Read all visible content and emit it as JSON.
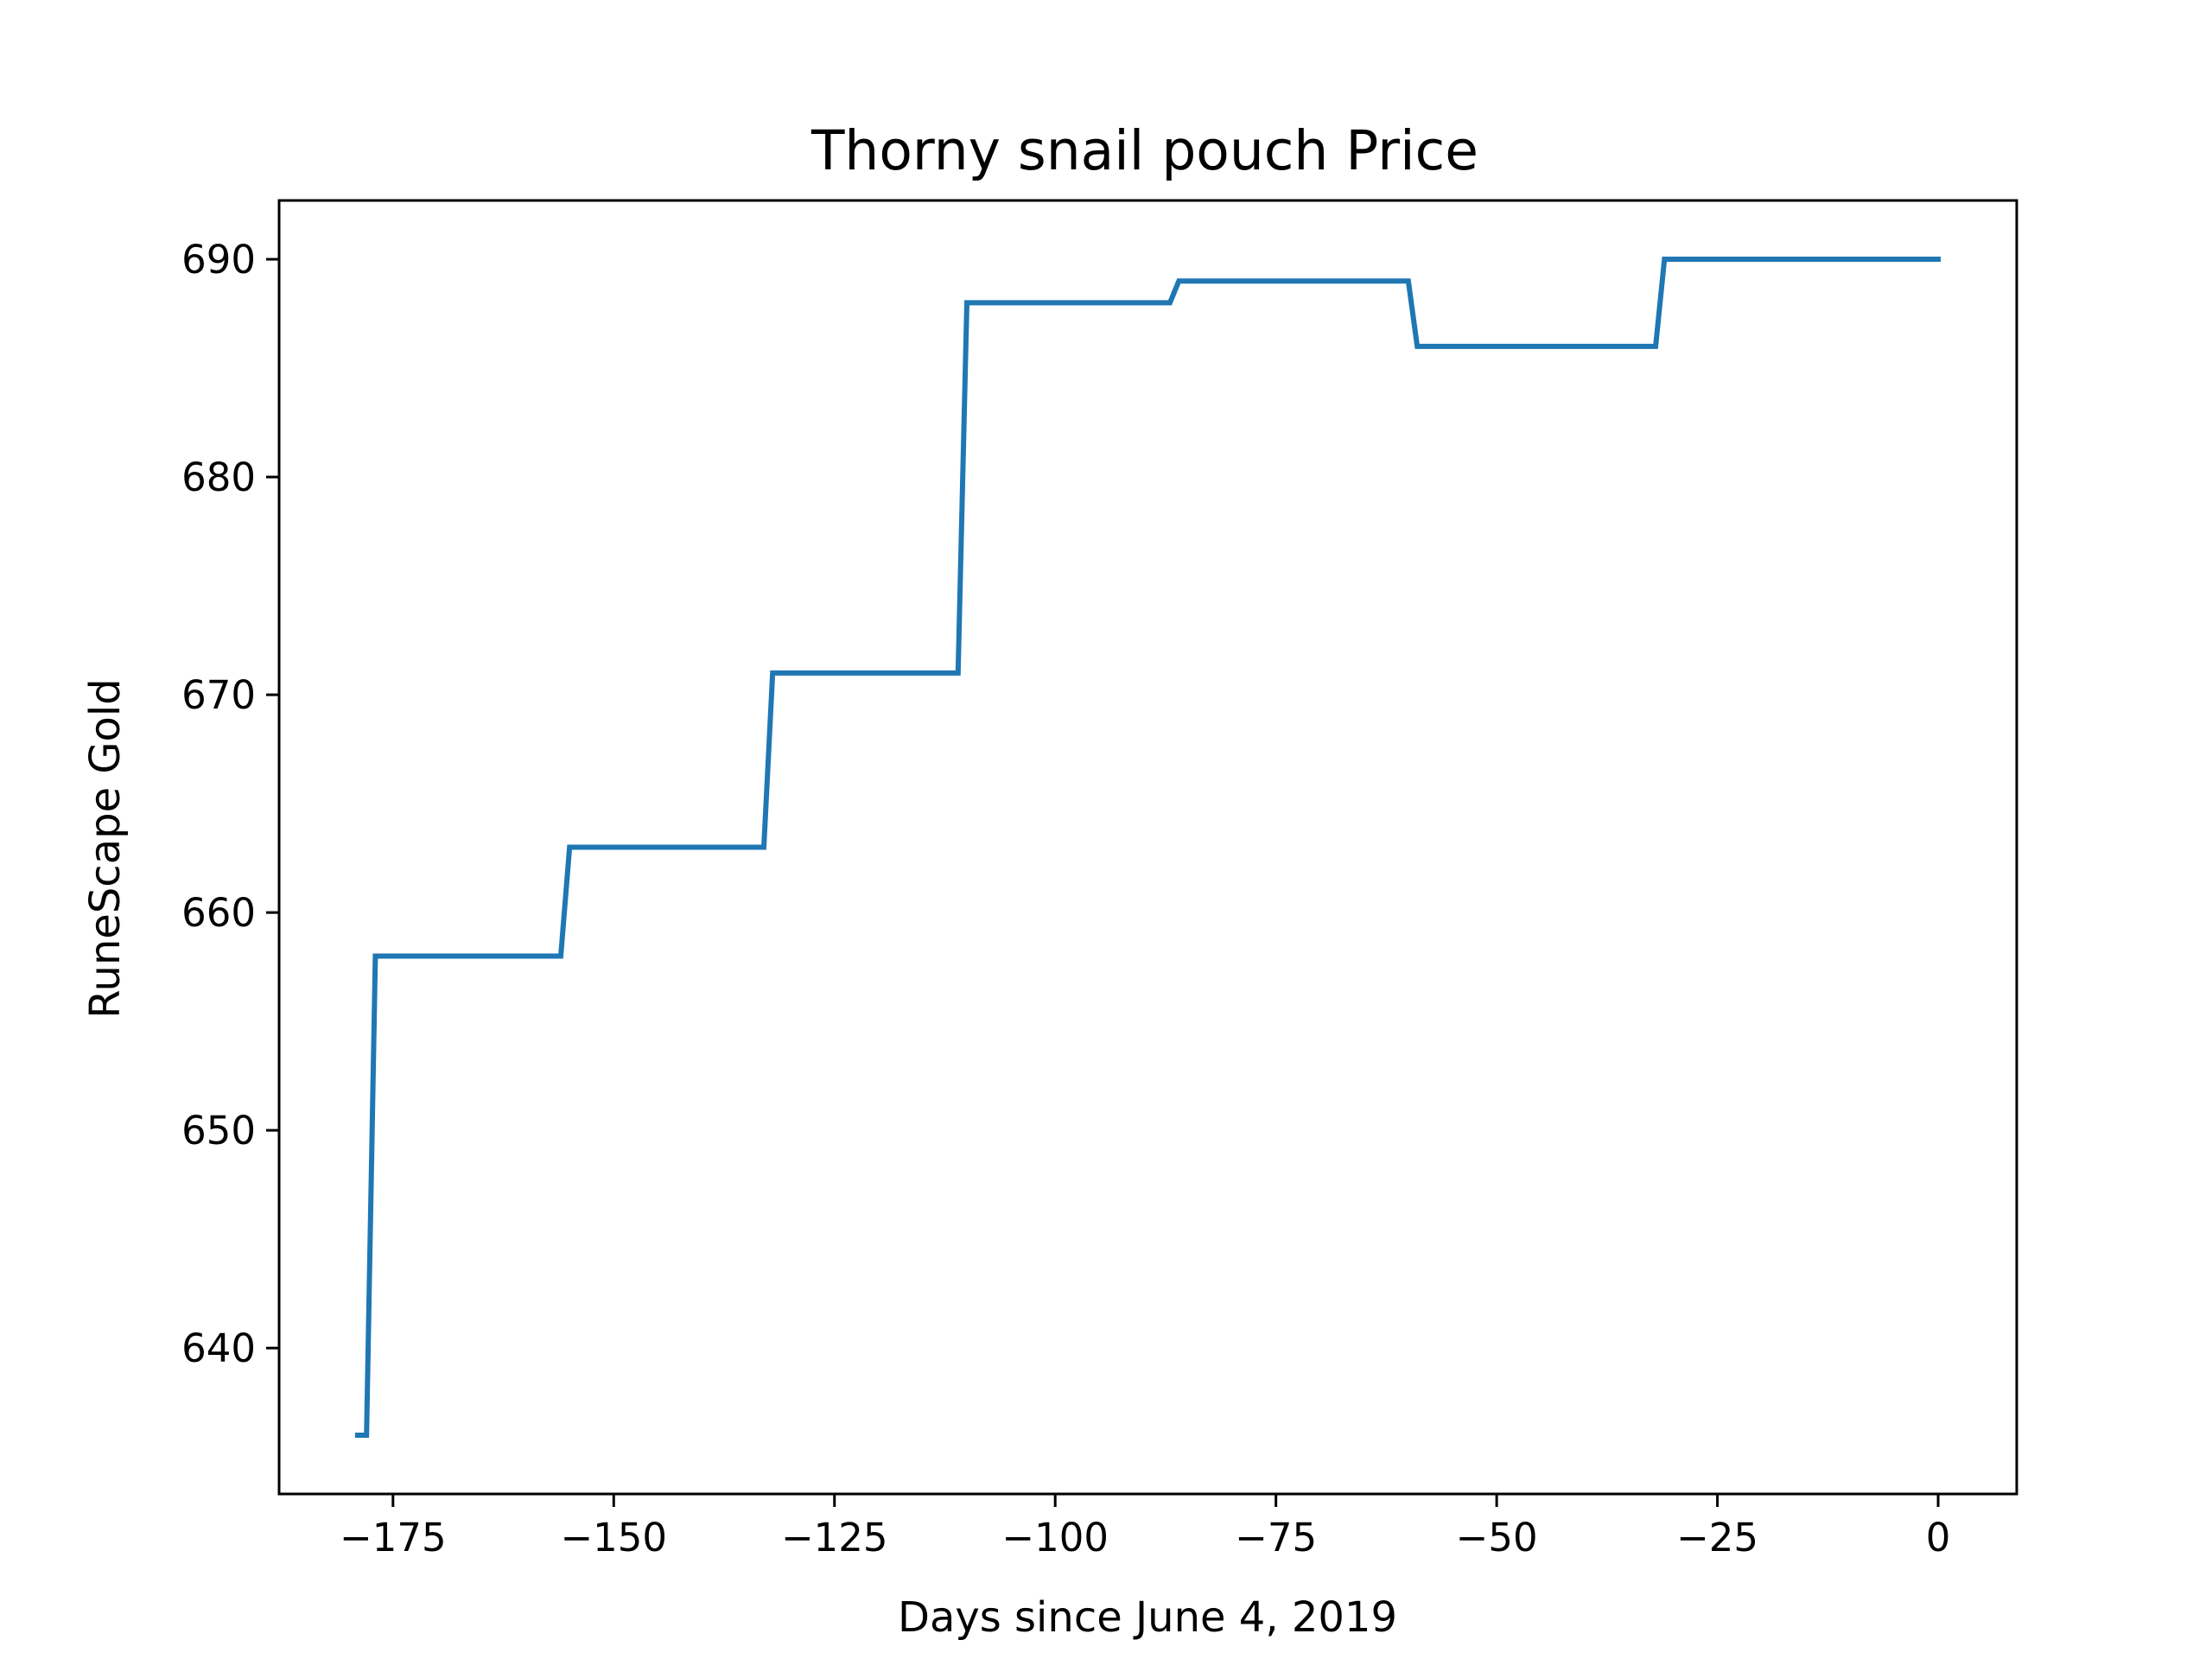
{
  "chart_data": {
    "type": "line",
    "title": "Thorny snail pouch Price",
    "xlabel": "Days since June 4, 2019",
    "ylabel": "RuneScape Gold",
    "xlim": [
      -187.9,
      8.9
    ],
    "ylim": [
      633.3,
      692.7
    ],
    "xticks": [
      -175,
      -150,
      -125,
      -100,
      -75,
      -50,
      -25,
      0
    ],
    "xtick_labels": [
      "−175",
      "−150",
      "−125",
      "−100",
      "−75",
      "−50",
      "−25",
      "0"
    ],
    "yticks": [
      640,
      650,
      660,
      670,
      680,
      690
    ],
    "ytick_labels": [
      "640",
      "650",
      "660",
      "670",
      "680",
      "690"
    ],
    "grid": false,
    "series": [
      {
        "color": "#1f77b4",
        "x": [
          -179,
          -178,
          -177,
          -156,
          -155,
          -133,
          -132,
          -111,
          -110,
          -87,
          -86,
          -60,
          -59,
          -32,
          -31,
          0
        ],
        "y": [
          636,
          636,
          658,
          658,
          663,
          663,
          671,
          671,
          688,
          688,
          689,
          689,
          686,
          686,
          690,
          690
        ]
      }
    ]
  }
}
